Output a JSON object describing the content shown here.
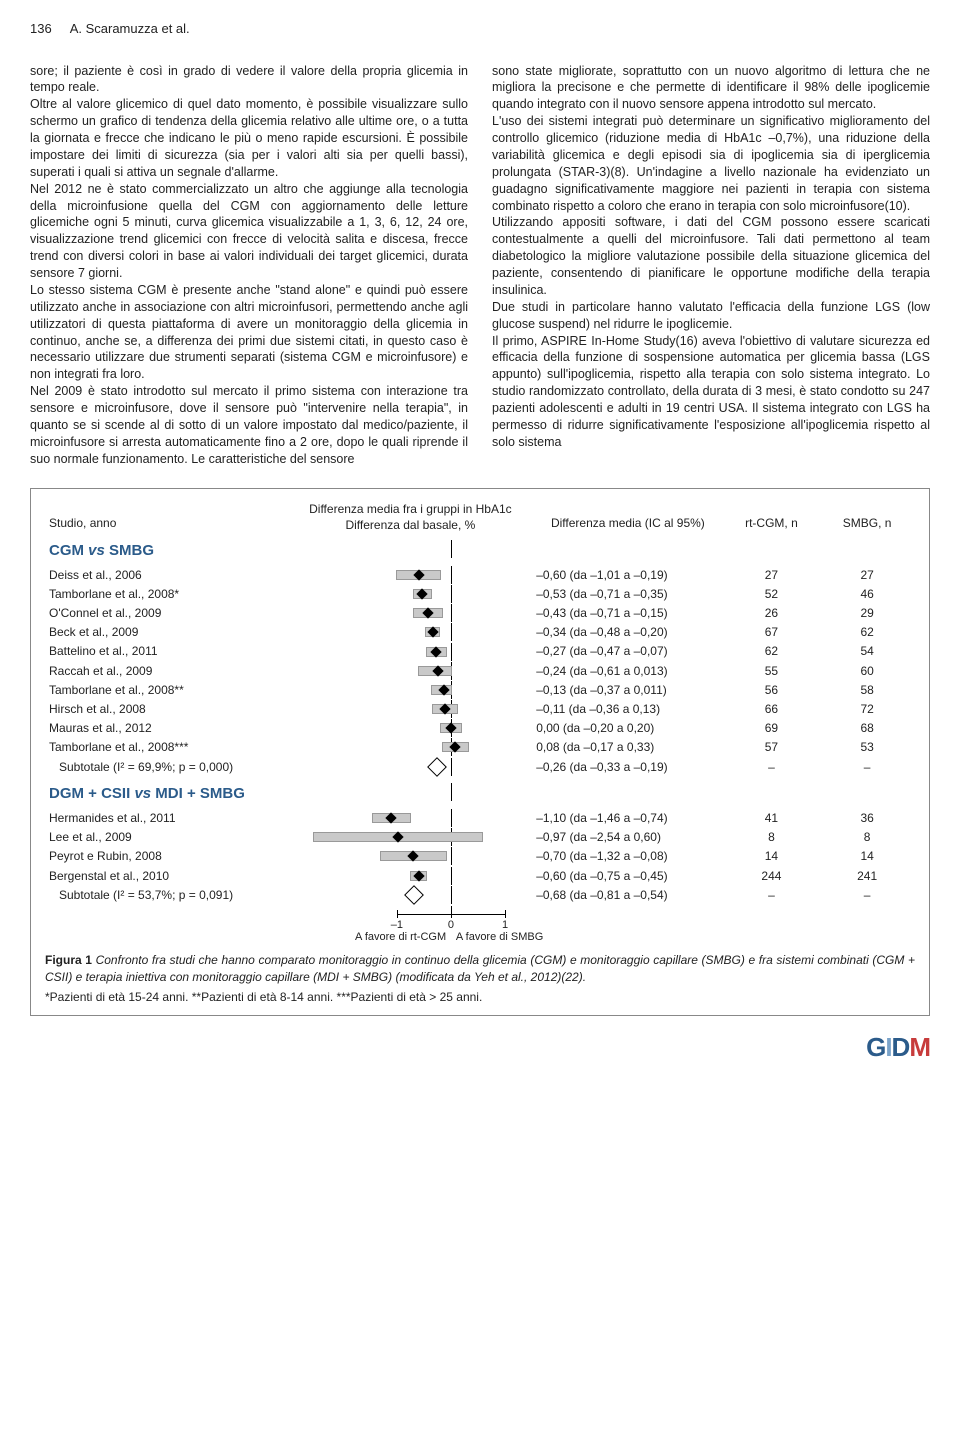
{
  "page_number": "136",
  "authors": "A. Scaramuzza et al.",
  "col_left": "sore; il paziente è così in grado di vedere il valore della propria glicemia in tempo reale.\nOltre al valore glicemico di quel dato momento, è possibile visualizzare sullo schermo un grafico di tendenza della glicemia relativo alle ultime ore, o a tutta la giornata e frecce che indicano le più o meno rapide escursioni. È possibile impostare dei limiti di sicurezza (sia per i valori alti sia per quelli bassi), superati i quali si attiva un segnale d'allarme.\nNel 2012 ne è stato commercializzato un altro che aggiunge alla tecnologia della microinfusione quella del CGM con aggiornamento delle letture glicemiche ogni 5 minuti, curva glicemica visualizzabile a 1, 3, 6, 12, 24 ore, visualizzazione trend glicemici con frecce di velocità salita e discesa, frecce trend con diversi colori in base ai valori individuali dei target glicemici, durata sensore 7 giorni.\nLo stesso sistema CGM è presente anche \"stand alone\" e quindi può essere utilizzato anche in associazione con altri microinfusori, permettendo anche agli utilizzatori di questa piattaforma di avere un monitoraggio della glicemia in continuo, anche se, a differenza dei primi due sistemi citati, in questo caso è necessario utilizzare due strumenti separati (sistema CGM e microinfusore) e non integrati fra loro.\nNel 2009 è stato introdotto sul mercato il primo sistema con interazione tra sensore e microinfusore, dove il sensore può \"intervenire nella terapia\", in quanto se si scende al di sotto di un valore impostato dal medico/paziente, il microinfusore si arresta automaticamente fino a 2 ore, dopo le quali riprende il suo normale funzionamento. Le caratteristiche del sensore",
  "col_right": "sono state migliorate, soprattutto con un nuovo algoritmo di lettura che ne migliora la precisone e che permette di identificare il 98% delle ipoglicemie quando integrato con il nuovo sensore appena introdotto sul mercato.\nL'uso dei sistemi integrati può determinare un significativo miglioramento del controllo glicemico (riduzione media di HbA1c –0,7%), una riduzione della variabilità glicemica e degli episodi sia di ipoglicemia sia di iperglicemia prolungata (STAR-3)(8). Un'indagine a livello nazionale ha evidenziato un guadagno significativamente maggiore nei pazienti in terapia con sistema combinato rispetto a coloro che erano in terapia con solo microinfusore(10).\nUtilizzando appositi software, i dati del CGM possono essere scaricati contestualmente a quelli del microinfusore. Tali dati permettono al team diabetologico la migliore valutazione possibile della situazione glicemica del paziente, consentendo di pianificare le opportune modifiche della terapia insulinica.\nDue studi in particolare hanno valutato l'efficacia della funzione LGS (low glucose suspend) nel ridurre le ipoglicemie.\nIl primo, ASPIRE In-Home Study(16) aveva l'obiettivo di valutare sicurezza ed efficacia della funzione di sospensione automatica per glicemia bassa (LGS appunto) sull'ipoglicemia, rispetto alla terapia con solo sistema integrato. Lo studio randomizzato controllato, della durata di 3 mesi, è stato condotto su 247 pazienti adolescenti e adulti in 19 centri USA. Il sistema integrato con LGS ha permesso di ridurre significativamente l'esposizione all'ipoglicemia rispetto al solo sistema",
  "table_header": {
    "study": "Studio, anno",
    "diff_line1": "Differenza media fra i gruppi in HbA1c",
    "diff_line2": "Differenza dal basale, %",
    "ci": "Differenza media (IC al 95%)",
    "rt": "rt-CGM, n",
    "smbg": "SMBG, n"
  },
  "plot_range": {
    "min": -3.0,
    "max": 1.5,
    "zero_pct": 66.67,
    "tick_neg1_pct": 44.44,
    "tick_pos1_pct": 88.89,
    "axis_start_pct": 30,
    "axis_end_pct": 95
  },
  "group1": {
    "title_a": "CGM",
    "title_vs": "vs",
    "title_b": "SMBG",
    "rows": [
      {
        "study": "Deiss et al., 2006",
        "pt": -0.6,
        "lo": -1.01,
        "hi": -0.19,
        "ci": "–0,60 (da –1,01 a –0,19)",
        "n1": "27",
        "n2": "27"
      },
      {
        "study": "Tamborlane et al., 2008*",
        "pt": -0.53,
        "lo": -0.71,
        "hi": -0.35,
        "ci": "–0,53 (da –0,71 a –0,35)",
        "n1": "52",
        "n2": "46"
      },
      {
        "study": "O'Connel et al., 2009",
        "pt": -0.43,
        "lo": -0.71,
        "hi": -0.15,
        "ci": "–0,43 (da –0,71 a –0,15)",
        "n1": "26",
        "n2": "29"
      },
      {
        "study": "Beck et al., 2009",
        "pt": -0.34,
        "lo": -0.48,
        "hi": -0.2,
        "ci": "–0,34 (da –0,48 a –0,20)",
        "n1": "67",
        "n2": "62"
      },
      {
        "study": "Battelino et al., 2011",
        "pt": -0.27,
        "lo": -0.47,
        "hi": -0.07,
        "ci": "–0,27 (da –0,47 a –0,07)",
        "n1": "62",
        "n2": "54"
      },
      {
        "study": "Raccah et al., 2009",
        "pt": -0.24,
        "lo": -0.61,
        "hi": 0.013,
        "ci": "–0,24 (da –0,61 a 0,013)",
        "n1": "55",
        "n2": "60"
      },
      {
        "study": "Tamborlane et al., 2008**",
        "pt": -0.13,
        "lo": -0.37,
        "hi": 0.011,
        "ci": "–0,13 (da –0,37 a 0,011)",
        "n1": "56",
        "n2": "58"
      },
      {
        "study": "Hirsch et al., 2008",
        "pt": -0.11,
        "lo": -0.36,
        "hi": 0.13,
        "ci": "–0,11 (da –0,36 a 0,13)",
        "n1": "66",
        "n2": "72"
      },
      {
        "study": "Mauras et al., 2012",
        "pt": 0.0,
        "lo": -0.2,
        "hi": 0.2,
        "ci": "0,00 (da –0,20 a 0,20)",
        "n1": "69",
        "n2": "68"
      },
      {
        "study": "Tamborlane et al., 2008***",
        "pt": 0.08,
        "lo": -0.17,
        "hi": 0.33,
        "ci": "0,08 (da –0,17 a 0,33)",
        "n1": "57",
        "n2": "53"
      }
    ],
    "subtotal": {
      "label": "Subtotale (I² = 69,9%; p = 0,000)",
      "pt": -0.26,
      "ci": "–0,26 (da –0,33 a –0,19)",
      "n1": "–",
      "n2": "–"
    }
  },
  "group2": {
    "title_a": "DGM + CSII",
    "title_vs": "vs",
    "title_b": "MDI + SMBG",
    "rows": [
      {
        "study": "Hermanides et al., 2011",
        "pt": -1.1,
        "lo": -1.46,
        "hi": -0.74,
        "ci": "–1,10 (da –1,46 a –0,74)",
        "n1": "41",
        "n2": "36"
      },
      {
        "study": "Lee et al., 2009",
        "pt": -0.97,
        "lo": -2.54,
        "hi": 0.6,
        "ci": "–0,97 (da –2,54 a 0,60)",
        "n1": "8",
        "n2": "8"
      },
      {
        "study": "Peyrot e Rubin, 2008",
        "pt": -0.7,
        "lo": -1.32,
        "hi": -0.08,
        "ci": "–0,70 (da –1,32 a –0,08)",
        "n1": "14",
        "n2": "14"
      },
      {
        "study": "Bergenstal et al., 2010",
        "pt": -0.6,
        "lo": -0.75,
        "hi": -0.45,
        "ci": "–0,60 (da –0,75 a –0,45)",
        "n1": "244",
        "n2": "241"
      }
    ],
    "subtotal": {
      "label": "Subtotale (I² = 53,7%; p = 0,091)",
      "pt": -0.68,
      "ci": "–0,68 (da –0,81 a –0,54)",
      "n1": "–",
      "n2": "–"
    }
  },
  "axis_labels": {
    "neg1": "–1",
    "zero": "0",
    "pos1": "1",
    "left_caption": "A favore di rt-CGM",
    "right_caption": "A favore di SMBG"
  },
  "caption": {
    "label": "Figura 1",
    "body": "Confronto fra studi che hanno comparato monitoraggio in continuo della glicemia (CGM) e monitoraggio capillare (SMBG) e fra sistemi combinati (CGM + CSII) e terapia iniettiva con monitoraggio capillare (MDI + SMBG) (modificata da Yeh et al., 2012)(22)."
  },
  "footnotes": "*Pazienti di età 15-24 anni. **Pazienti di età 8-14 anni. ***Pazienti di età > 25 anni.",
  "logo": {
    "g": "G",
    "i": "I",
    "d": "D",
    "m": "M"
  }
}
